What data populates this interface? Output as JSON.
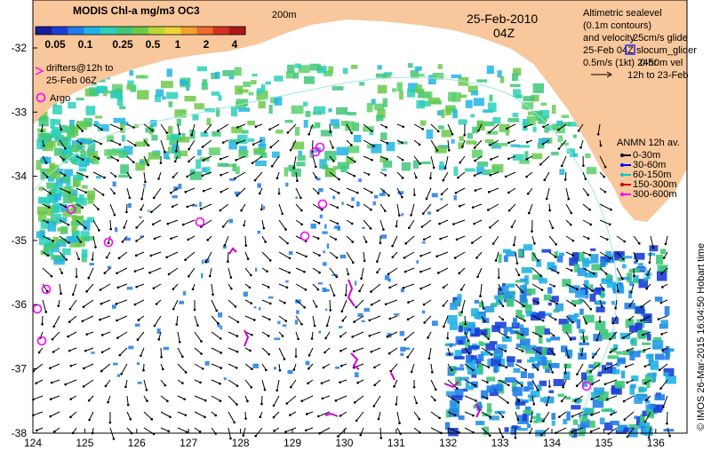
{
  "colorbar": {
    "title": "MODIS Chl-a mg/m3 OC3",
    "ticks": [
      "0.05",
      "0.1",
      "0.25",
      "0.5",
      "1",
      "2",
      "4"
    ],
    "colors": [
      "#1a1aa0",
      "#1a3fd6",
      "#1f7de8",
      "#21b4e3",
      "#2ad0b8",
      "#3ec77a",
      "#6cc94a",
      "#b8d83a",
      "#f0d435",
      "#f4a030",
      "#ec6a2a",
      "#d63223",
      "#b01818"
    ]
  },
  "isobath_label": "200m",
  "date": "25-Feb-2010",
  "time": "04Z",
  "drifters_label_line1": "drifters@12h to",
  "drifters_label_line2": "25-Feb 06Z",
  "argo_label": "Argo",
  "altimetry": {
    "line1": "Altimetric sealevel",
    "line2": "(0.1m contours)",
    "line3": "and velocity",
    "glide_text": "25cm/s glide",
    "slocum_text": "slocum_glider",
    "feb_date": "25-Feb 04Z",
    "depth_vel": "0.5m/s (1kt) 24hr",
    "depth_vel2": "0-50m vel",
    "period": "12h to 23-Feb"
  },
  "anmn": {
    "title": "ANMN 12h av.",
    "items": [
      {
        "label": "0-30m",
        "color": "#000000"
      },
      {
        "label": "30-60m",
        "color": "#0000ff"
      },
      {
        "label": "60-150m",
        "color": "#00c8c8"
      },
      {
        "label": "150-300m",
        "color": "#cc0000"
      },
      {
        "label": "300-600m",
        "color": "#ff00ff"
      }
    ]
  },
  "credit": "© IMOS 26-Mar-2015 16:04:50 Hobart time",
  "axes": {
    "lon_ticks": [
      "124",
      "125",
      "126",
      "127",
      "128",
      "129",
      "130",
      "131",
      "132",
      "133",
      "134",
      "135",
      "136"
    ],
    "lat_ticks": [
      "-32",
      "-33",
      "-34",
      "-35",
      "-36",
      "-37",
      "-38"
    ]
  },
  "colors": {
    "land": "#f8c79b",
    "ocean": "#ffffff",
    "arrow": "#000000",
    "argo": "#ff00ff",
    "drifter": "#cc00cc"
  }
}
